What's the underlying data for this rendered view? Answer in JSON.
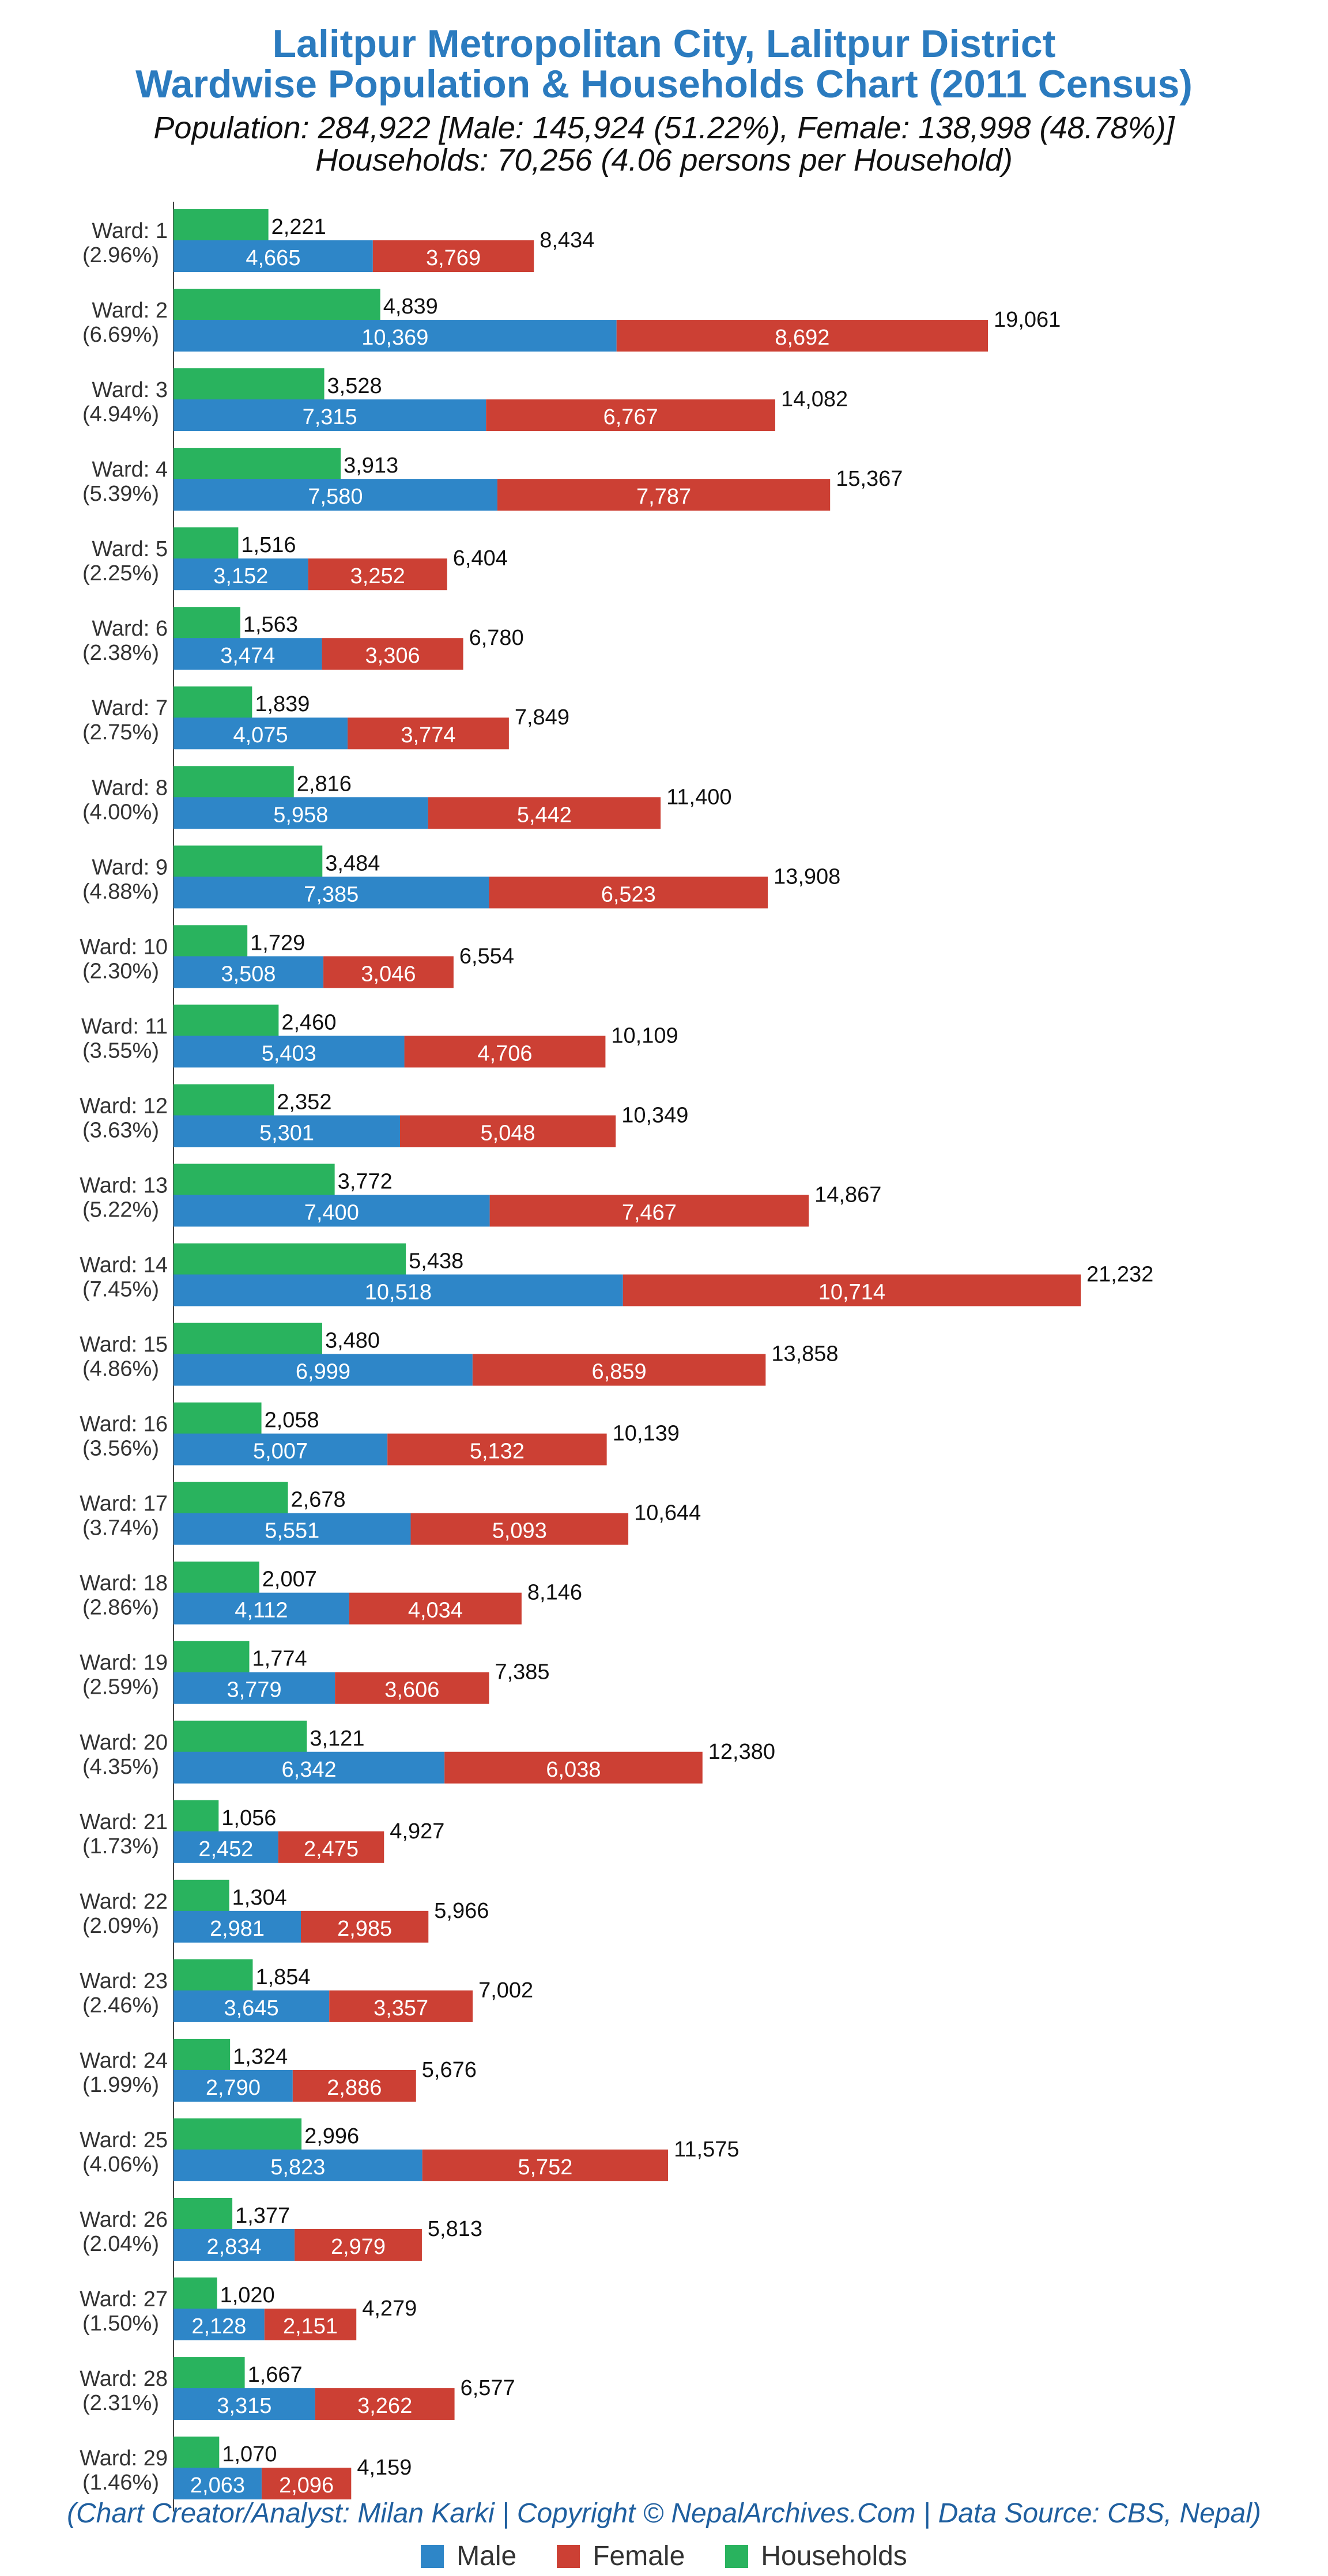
{
  "chart_data": {
    "type": "bar",
    "orientation": "horizontal",
    "stacked_population": true,
    "title": "Lalitpur Metropolitan City, Lalitpur District",
    "title_line2": "Wardwise Population & Households Chart (2011 Census)",
    "subtitle": "Population: 284,922 [Male: 145,924 (51.22%), Female: 138,998 (48.78%)]",
    "subtitle_line2": "Households: 70,256 (4.06 persons per Household)",
    "credit": "(Chart Creator/Analyst: Milan Karki | Copyright © NepalArchives.Com | Data Source: CBS, Nepal)",
    "legend_position": "bottom",
    "grid": false,
    "xlim": [
      0,
      21232
    ],
    "colors": {
      "male": "#2e86c8",
      "female": "#cc4034",
      "households": "#29b35e"
    },
    "legend": [
      {
        "name": "Male",
        "color": "#2e86c8"
      },
      {
        "name": "Female",
        "color": "#cc4034"
      },
      {
        "name": "Households",
        "color": "#29b35e"
      }
    ],
    "categories": [
      {
        "ward": "Ward: 1",
        "pct": "(2.96%)"
      },
      {
        "ward": "Ward: 2",
        "pct": "(6.69%)"
      },
      {
        "ward": "Ward: 3",
        "pct": "(4.94%)"
      },
      {
        "ward": "Ward: 4",
        "pct": "(5.39%)"
      },
      {
        "ward": "Ward: 5",
        "pct": "(2.25%)"
      },
      {
        "ward": "Ward: 6",
        "pct": "(2.38%)"
      },
      {
        "ward": "Ward: 7",
        "pct": "(2.75%)"
      },
      {
        "ward": "Ward: 8",
        "pct": "(4.00%)"
      },
      {
        "ward": "Ward: 9",
        "pct": "(4.88%)"
      },
      {
        "ward": "Ward: 10",
        "pct": "(2.30%)"
      },
      {
        "ward": "Ward: 11",
        "pct": "(3.55%)"
      },
      {
        "ward": "Ward: 12",
        "pct": "(3.63%)"
      },
      {
        "ward": "Ward: 13",
        "pct": "(5.22%)"
      },
      {
        "ward": "Ward: 14",
        "pct": "(7.45%)"
      },
      {
        "ward": "Ward: 15",
        "pct": "(4.86%)"
      },
      {
        "ward": "Ward: 16",
        "pct": "(3.56%)"
      },
      {
        "ward": "Ward: 17",
        "pct": "(3.74%)"
      },
      {
        "ward": "Ward: 18",
        "pct": "(2.86%)"
      },
      {
        "ward": "Ward: 19",
        "pct": "(2.59%)"
      },
      {
        "ward": "Ward: 20",
        "pct": "(4.35%)"
      },
      {
        "ward": "Ward: 21",
        "pct": "(1.73%)"
      },
      {
        "ward": "Ward: 22",
        "pct": "(2.09%)"
      },
      {
        "ward": "Ward: 23",
        "pct": "(2.46%)"
      },
      {
        "ward": "Ward: 24",
        "pct": "(1.99%)"
      },
      {
        "ward": "Ward: 25",
        "pct": "(4.06%)"
      },
      {
        "ward": "Ward: 26",
        "pct": "(2.04%)"
      },
      {
        "ward": "Ward: 27",
        "pct": "(1.50%)"
      },
      {
        "ward": "Ward: 28",
        "pct": "(2.31%)"
      },
      {
        "ward": "Ward: 29",
        "pct": "(1.46%)"
      }
    ],
    "series": [
      {
        "name": "Households",
        "values": [
          2221,
          4839,
          3528,
          3913,
          1516,
          1563,
          1839,
          2816,
          3484,
          1729,
          2460,
          2352,
          3772,
          5438,
          3480,
          2058,
          2678,
          2007,
          1774,
          3121,
          1056,
          1304,
          1854,
          1324,
          2996,
          1377,
          1020,
          1667,
          1070
        ]
      },
      {
        "name": "Male",
        "values": [
          4665,
          10369,
          7315,
          7580,
          3152,
          3474,
          4075,
          5958,
          7385,
          3508,
          5403,
          5301,
          7400,
          10518,
          6999,
          5007,
          5551,
          4112,
          3779,
          6342,
          2452,
          2981,
          3645,
          2790,
          5823,
          2834,
          2128,
          3315,
          2063
        ]
      },
      {
        "name": "Female",
        "values": [
          3769,
          8692,
          6767,
          7787,
          3252,
          3306,
          3774,
          5442,
          6523,
          3046,
          4706,
          5048,
          7467,
          10714,
          6859,
          5132,
          5093,
          4034,
          3606,
          6038,
          2475,
          2985,
          3357,
          2886,
          5752,
          2979,
          2151,
          3262,
          2096
        ]
      }
    ],
    "totals": [
      8434,
      19061,
      14082,
      15367,
      6404,
      6780,
      7849,
      11400,
      13908,
      6554,
      10109,
      10349,
      14867,
      21232,
      13858,
      10139,
      10644,
      8146,
      7385,
      12380,
      4927,
      5966,
      7002,
      5676,
      11575,
      5813,
      4279,
      6577,
      4159
    ]
  }
}
